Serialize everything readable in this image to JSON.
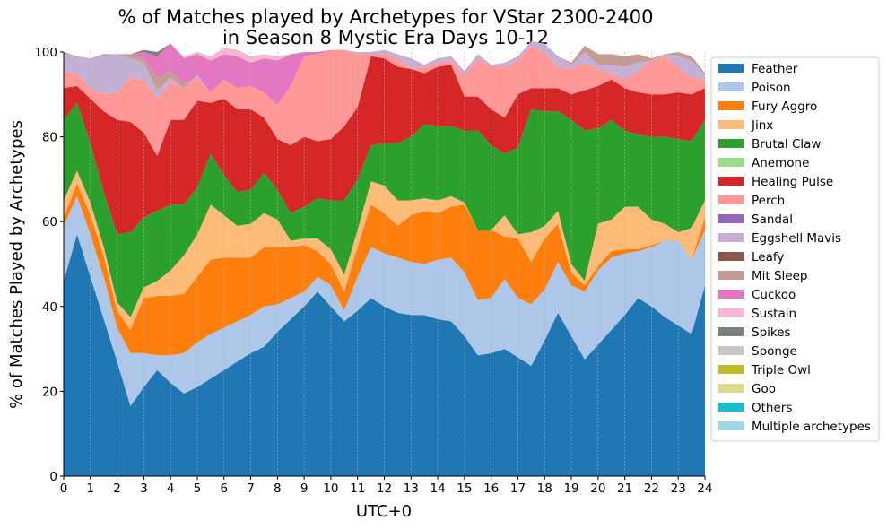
{
  "chart_data": {
    "type": "area",
    "title_lines": [
      "% of Matches played by Archetypes for VStar 2300-2400",
      "in Season 8 Mystic Era Days 10-12"
    ],
    "xlabel": "UTC+0",
    "ylabel": "% of Matches Played by Archetypes",
    "xlim": [
      0,
      24
    ],
    "ylim": [
      0,
      100
    ],
    "x_ticks": [
      "0",
      "1",
      "2",
      "3",
      "4",
      "5",
      "6",
      "7",
      "8",
      "9",
      "10",
      "11",
      "12",
      "13",
      "14",
      "15",
      "16",
      "17",
      "18",
      "19",
      "20",
      "21",
      "22",
      "23",
      "24"
    ],
    "y_ticks": [
      "0",
      "20",
      "40",
      "60",
      "80",
      "100"
    ],
    "grid": "vertical dashed",
    "legend_position": "outside right",
    "x": [
      0,
      0.5,
      1,
      1.5,
      2,
      2.5,
      3,
      3.5,
      4,
      4.5,
      5,
      5.5,
      6,
      6.5,
      7,
      7.5,
      8,
      8.5,
      9,
      9.5,
      10,
      10.5,
      11,
      11.5,
      12,
      12.5,
      13,
      13.5,
      14,
      14.5,
      15,
      15.5,
      16,
      16.5,
      17,
      17.5,
      18,
      18.5,
      19,
      19.5,
      20,
      20.5,
      21,
      21.5,
      22,
      22.5,
      23,
      23.5,
      24
    ],
    "series": [
      {
        "name": "Feather",
        "color": "#1f77b4",
        "values": [
          46,
          57,
          47,
          37,
          27,
          16.5,
          21,
          25,
          22,
          19.5,
          21,
          23,
          25,
          27,
          29,
          30.5,
          34,
          37,
          40,
          43.5,
          40,
          36.5,
          39,
          42,
          40,
          38.5,
          38,
          38,
          37,
          36.5,
          33,
          28.5,
          29,
          30,
          28,
          26,
          32,
          38.5,
          33,
          27.5,
          31,
          34.5,
          38,
          42,
          40,
          37.5,
          35.5,
          33.5,
          45
        ]
      },
      {
        "name": "Poison",
        "color": "#aec7e8",
        "values": [
          13,
          9,
          10,
          10,
          8,
          12.5,
          8,
          3.5,
          6.5,
          9.5,
          10.5,
          10.5,
          10,
          9.5,
          9,
          9.5,
          6.5,
          5,
          3.5,
          3.5,
          5,
          2.5,
          8,
          12,
          12.5,
          13,
          12.5,
          12,
          14,
          15,
          15,
          13,
          13,
          16.5,
          14,
          14.5,
          12,
          12,
          12,
          16,
          17.5,
          17,
          14.5,
          11,
          14,
          18,
          20,
          17.5,
          13
        ]
      },
      {
        "name": "Fury Aggro",
        "color": "#ff7f0e",
        "values": [
          2,
          3,
          4.5,
          5,
          4,
          5.5,
          13,
          14,
          14,
          14,
          15.5,
          17.5,
          16.5,
          15,
          13.5,
          14,
          13.5,
          12,
          11,
          6,
          5,
          4.5,
          7,
          10,
          9.5,
          7.5,
          11,
          12.5,
          11,
          12,
          16,
          16.5,
          16,
          10,
          14,
          10,
          12,
          9,
          3,
          1.5,
          1,
          1.5,
          1,
          0.5,
          0.5,
          0,
          0,
          0,
          3
        ]
      },
      {
        "name": "Jinx",
        "color": "#ffbb78",
        "values": [
          4,
          3,
          3,
          2,
          2,
          3,
          2.5,
          3.5,
          6,
          9,
          10,
          13,
          10,
          7.5,
          8,
          8,
          6.5,
          1.5,
          1.5,
          3,
          3.5,
          4,
          4,
          5.5,
          6.5,
          6,
          3.5,
          3,
          3,
          2.5,
          0.5,
          0,
          0,
          5,
          1,
          7,
          3,
          3,
          2,
          1,
          10,
          7.5,
          10,
          10,
          6,
          4,
          2,
          7.5,
          4
        ]
      },
      {
        "name": "Brutal Claw",
        "color": "#2ca02c",
        "values": [
          19,
          16,
          14,
          13,
          16,
          20,
          16.5,
          16.5,
          15.5,
          12,
          11,
          12,
          9.5,
          8,
          8,
          9.5,
          7,
          6.5,
          7.5,
          9.5,
          11.5,
          17.5,
          12,
          8.5,
          10,
          13.5,
          15,
          17.5,
          17.5,
          16.5,
          17,
          23.5,
          20,
          14.5,
          20.5,
          29,
          27,
          23.5,
          34,
          35.5,
          22.5,
          23.5,
          18,
          17,
          19.5,
          20.5,
          22,
          20.5,
          19
        ]
      },
      {
        "name": "Anemone",
        "color": "#98df8a",
        "values": [
          0,
          0,
          0,
          0,
          0,
          0,
          0,
          0,
          0,
          0,
          0,
          0,
          0,
          0,
          0,
          0,
          0,
          0,
          0,
          0,
          0,
          0,
          0,
          0,
          0,
          0,
          0,
          0,
          0,
          0,
          0,
          0,
          0,
          0,
          0,
          0,
          0,
          0,
          0,
          0,
          0,
          0,
          0,
          0,
          0,
          0,
          0,
          0,
          0
        ]
      },
      {
        "name": "Healing Pulse",
        "color": "#d62728",
        "values": [
          7.5,
          4,
          10.5,
          19,
          27,
          26,
          20,
          13,
          20,
          20,
          20.5,
          12,
          18,
          19.5,
          19,
          13,
          12,
          16,
          16.5,
          13.5,
          14.5,
          17.5,
          17,
          21,
          20,
          18,
          16,
          12,
          14,
          14.5,
          8,
          8,
          8.5,
          8.5,
          12.5,
          5,
          5.5,
          5.5,
          6,
          9.5,
          10,
          9.5,
          10,
          10,
          10,
          10,
          11,
          11,
          7.5
        ]
      },
      {
        "name": "Perch",
        "color": "#ff9896",
        "values": [
          4,
          3,
          2.5,
          4,
          6.5,
          10.5,
          12.5,
          13.5,
          9,
          7.5,
          5.5,
          2.5,
          4.5,
          5,
          5.5,
          6,
          8,
          14,
          19,
          20.5,
          21,
          18,
          12.5,
          0.5,
          1,
          2,
          0,
          1.5,
          1,
          1,
          5,
          9,
          10,
          12,
          8,
          10,
          8.5,
          5,
          6,
          6.5,
          4,
          1.5,
          2,
          5,
          8,
          9,
          6,
          4,
          2
        ]
      },
      {
        "name": "Sandal",
        "color": "#9467bd",
        "values": [
          0,
          0,
          0,
          0,
          0,
          0,
          0,
          0,
          0,
          0,
          0,
          0,
          0,
          0,
          0,
          0,
          0,
          0,
          0,
          0,
          0,
          0,
          0,
          0,
          0,
          0,
          0,
          0,
          0,
          0,
          0,
          0,
          0,
          0,
          0,
          0,
          0,
          0,
          0,
          0,
          0,
          0,
          0,
          0,
          0,
          0,
          0,
          0,
          0
        ]
      },
      {
        "name": "Eggshell Mavis",
        "color": "#c5b0d5",
        "values": [
          4,
          4,
          7,
          9,
          9,
          4.5,
          4,
          2,
          1,
          0,
          0.5,
          0,
          0,
          0,
          0,
          0,
          0,
          0,
          0,
          0,
          0,
          0,
          0.5,
          0.5,
          1,
          1,
          2.5,
          0.5,
          1,
          1,
          1,
          1,
          0.5,
          1,
          1,
          1,
          2,
          2.5,
          1,
          2.5,
          1,
          2,
          3,
          2,
          0,
          0.5,
          2.5,
          4,
          1
        ]
      },
      {
        "name": "Leafy",
        "color": "#8c564b",
        "values": [
          0,
          0,
          0,
          0,
          0,
          0,
          0,
          0,
          0,
          0,
          0,
          0,
          0,
          0,
          0,
          0,
          0,
          0,
          0,
          0,
          0,
          0,
          0,
          0,
          0,
          0,
          0,
          0,
          0,
          0,
          0,
          0,
          0,
          0,
          0,
          0,
          0,
          0,
          0,
          0,
          0,
          0,
          0,
          0,
          0,
          0,
          0,
          0,
          0
        ]
      },
      {
        "name": "Mit Sleep",
        "color": "#c49c94",
        "values": [
          0.5,
          0,
          0,
          0.5,
          0,
          1,
          1,
          3,
          1.5,
          1,
          0,
          0,
          0,
          0,
          0,
          0,
          0,
          0,
          0,
          0,
          0,
          0,
          0,
          0,
          0,
          0,
          0,
          0,
          0,
          0,
          0,
          0,
          0,
          0,
          0,
          0,
          0,
          0,
          0.5,
          1.5,
          2.5,
          2.5,
          2.5,
          2,
          0.5,
          0,
          1,
          1,
          0.5
        ]
      },
      {
        "name": "Cuckoo",
        "color": "#e377c2",
        "values": [
          0,
          0,
          0,
          0,
          0,
          0,
          1.5,
          5,
          6.5,
          6,
          5,
          7.5,
          6,
          7.5,
          5.5,
          8,
          10.5,
          7.5,
          1,
          0.5,
          0,
          0,
          0,
          0,
          0,
          0,
          0,
          0,
          0,
          0,
          0,
          0,
          0,
          0,
          0,
          0,
          0,
          0,
          0,
          0,
          0,
          0,
          0,
          0,
          0,
          0,
          0,
          0,
          0
        ]
      },
      {
        "name": "Sustain",
        "color": "#f7b6d2",
        "values": [
          0,
          0,
          0,
          0,
          0,
          0,
          0,
          0,
          0,
          0.5,
          0.5,
          1,
          1.5,
          1.5,
          1.5,
          1,
          1,
          0,
          0,
          0,
          0,
          0,
          0,
          0,
          0,
          0,
          0,
          0,
          0,
          0,
          0,
          0,
          0,
          0,
          0,
          0,
          0,
          0,
          0,
          0,
          0,
          0,
          0,
          0,
          0,
          0,
          0,
          0,
          0
        ]
      },
      {
        "name": "Spikes",
        "color": "#7f7f7f",
        "values": [
          0,
          0,
          0,
          0,
          0,
          0,
          0.5,
          1,
          0,
          0,
          0,
          0,
          0,
          0,
          0,
          0,
          0,
          0,
          0,
          0,
          0,
          0,
          0,
          0,
          0,
          0,
          0,
          0,
          0,
          0,
          0,
          0,
          0,
          0,
          0,
          0,
          0,
          0,
          0,
          0,
          0,
          0,
          0,
          0,
          0,
          0,
          0,
          0,
          0
        ]
      },
      {
        "name": "Sponge",
        "color": "#c7c7c7",
        "values": [
          0,
          0,
          0,
          0,
          0,
          0,
          0,
          0,
          0,
          0,
          0,
          0,
          0,
          0,
          0,
          0,
          0,
          0,
          0,
          0,
          0,
          0,
          0,
          0,
          0,
          0,
          0,
          0,
          0,
          0,
          0,
          0,
          0,
          0,
          0,
          0,
          0,
          0,
          0,
          0,
          0,
          0,
          0,
          0,
          0,
          0,
          0,
          0,
          0
        ]
      },
      {
        "name": "Triple Owl",
        "color": "#bcbd22",
        "values": [
          0,
          0,
          0,
          0,
          0,
          0,
          0,
          0,
          0,
          0,
          0,
          0,
          0,
          0,
          0,
          0,
          0,
          0,
          0,
          0,
          0,
          0,
          0,
          0,
          0,
          0,
          0,
          0,
          0,
          0,
          0,
          0,
          0,
          0,
          0,
          0,
          0,
          0,
          0,
          0,
          0,
          0,
          0,
          0,
          0,
          0,
          0,
          0,
          0
        ]
      },
      {
        "name": "Goo",
        "color": "#dbdb8d",
        "values": [
          0,
          0,
          0,
          0,
          0,
          0,
          0,
          0,
          0,
          0,
          0,
          0,
          0,
          0,
          0,
          0,
          0,
          0,
          0,
          0,
          0,
          0,
          0,
          0,
          0,
          0,
          0,
          0,
          0,
          0,
          0,
          0,
          0,
          0,
          0,
          0,
          0,
          0,
          0,
          0,
          0,
          0,
          0,
          0,
          0,
          0,
          0,
          0,
          0
        ]
      },
      {
        "name": "Others",
        "color": "#17becf",
        "values": [
          0,
          0,
          0,
          0,
          0,
          0,
          0,
          0,
          0,
          0,
          0,
          0,
          0,
          0,
          0,
          0,
          0,
          0,
          0,
          0,
          0,
          0,
          0,
          0,
          0,
          0,
          0,
          0,
          0,
          0,
          0,
          0,
          0,
          0,
          0,
          0,
          0,
          0,
          0,
          0,
          0,
          0,
          0,
          0,
          0,
          0,
          0,
          0,
          0
        ]
      },
      {
        "name": "Multiple archetypes",
        "color": "#9edae5",
        "values": [
          0,
          0,
          0,
          0,
          0,
          0,
          0,
          0,
          0,
          0,
          0,
          0,
          0,
          0,
          0,
          0,
          0,
          0,
          0,
          0,
          0,
          0,
          0,
          0,
          0,
          0,
          0,
          0,
          0,
          0,
          0,
          0,
          0,
          0,
          0,
          0,
          0,
          0,
          0,
          0,
          0,
          0,
          0,
          0,
          0,
          0,
          0,
          0,
          0
        ]
      }
    ]
  }
}
